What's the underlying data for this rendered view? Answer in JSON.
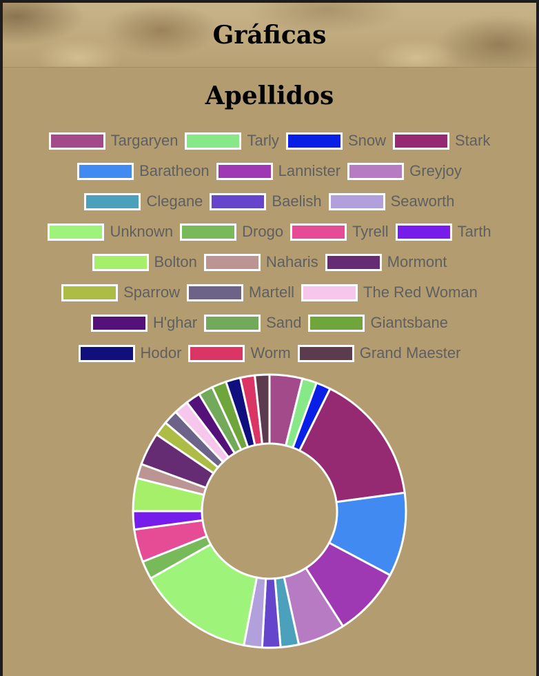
{
  "header": {
    "title": "Gráficas"
  },
  "chart_data": {
    "type": "pie",
    "donut": true,
    "title": "Apellidos",
    "legend_position": "top",
    "slices": [
      {
        "label": "Targaryen",
        "value": 9,
        "color": "#a34b8a"
      },
      {
        "label": "Tarly",
        "value": 4,
        "color": "#87e887"
      },
      {
        "label": "Snow",
        "value": 4,
        "color": "#0a1fe6"
      },
      {
        "label": "Stark",
        "value": 36,
        "color": "#962a72"
      },
      {
        "label": "Baratheon",
        "value": 23,
        "color": "#408af2"
      },
      {
        "label": "Lannister",
        "value": 19,
        "color": "#9e38b3"
      },
      {
        "label": "Greyjoy",
        "value": 13,
        "color": "#b67bc2"
      },
      {
        "label": "Clegane",
        "value": 5,
        "color": "#4ba0bc"
      },
      {
        "label": "Baelish",
        "value": 5,
        "color": "#6445cc"
      },
      {
        "label": "Seaworth",
        "value": 5,
        "color": "#b1a0db"
      },
      {
        "label": "Unknown",
        "value": 32,
        "color": "#9ef37a"
      },
      {
        "label": "Drogo",
        "value": 5,
        "color": "#78b95a"
      },
      {
        "label": "Tyrell",
        "value": 9,
        "color": "#e64c96"
      },
      {
        "label": "Tarth",
        "value": 5,
        "color": "#761ceb"
      },
      {
        "label": "Bolton",
        "value": 9,
        "color": "#a5ef6b"
      },
      {
        "label": "Naharis",
        "value": 4,
        "color": "#bc9494"
      },
      {
        "label": "Mormont",
        "value": 9,
        "color": "#662c73"
      },
      {
        "label": "Sparrow",
        "value": 4,
        "color": "#acbc45"
      },
      {
        "label": "Martell",
        "value": 4,
        "color": "#6d6287"
      },
      {
        "label": "The Red Woman",
        "value": 4,
        "color": "#f6c6ed"
      },
      {
        "label": "H'ghar",
        "value": 4,
        "color": "#54117a"
      },
      {
        "label": "Sand",
        "value": 4,
        "color": "#73a95b"
      },
      {
        "label": "Giantsbane",
        "value": 4,
        "color": "#6fa63c"
      },
      {
        "label": "Hodor",
        "value": 4,
        "color": "#0f0f7d"
      },
      {
        "label": "Worm",
        "value": 4,
        "color": "#db3566"
      },
      {
        "label": "Grand Maester",
        "value": 4,
        "color": "#5c3b4f"
      }
    ]
  }
}
